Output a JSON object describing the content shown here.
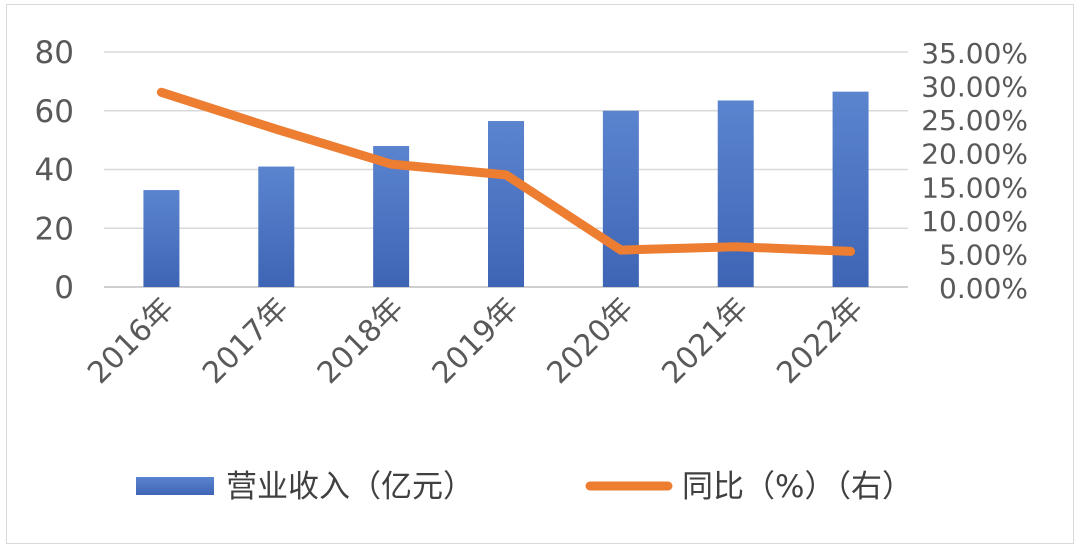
{
  "chart_data": {
    "type": "bar",
    "categories": [
      "2016年",
      "2017年",
      "2018年",
      "2019年",
      "2020年",
      "2021年",
      "2022年"
    ],
    "series": [
      {
        "name": "营业收入（亿元）",
        "type": "bar",
        "axis": "left",
        "values": [
          33,
          41,
          48,
          56.5,
          60,
          63.5,
          66.5
        ],
        "color": "#4472c4"
      },
      {
        "name": "同比（%）（右）",
        "type": "line",
        "axis": "right",
        "values": [
          29,
          23.5,
          18.3,
          16.7,
          5.5,
          6.0,
          5.3
        ],
        "color": "#ed7d31"
      }
    ],
    "ylim_left": [
      0,
      80
    ],
    "yticks_left": [
      "0",
      "20",
      "40",
      "60",
      "80"
    ],
    "ylim_right": [
      0,
      35
    ],
    "yticks_right": [
      "0.00%",
      "5.00%",
      "10.00%",
      "15.00%",
      "20.00%",
      "25.00%",
      "30.00%",
      "35.00%"
    ],
    "grid": true,
    "legend_position": "bottom"
  }
}
